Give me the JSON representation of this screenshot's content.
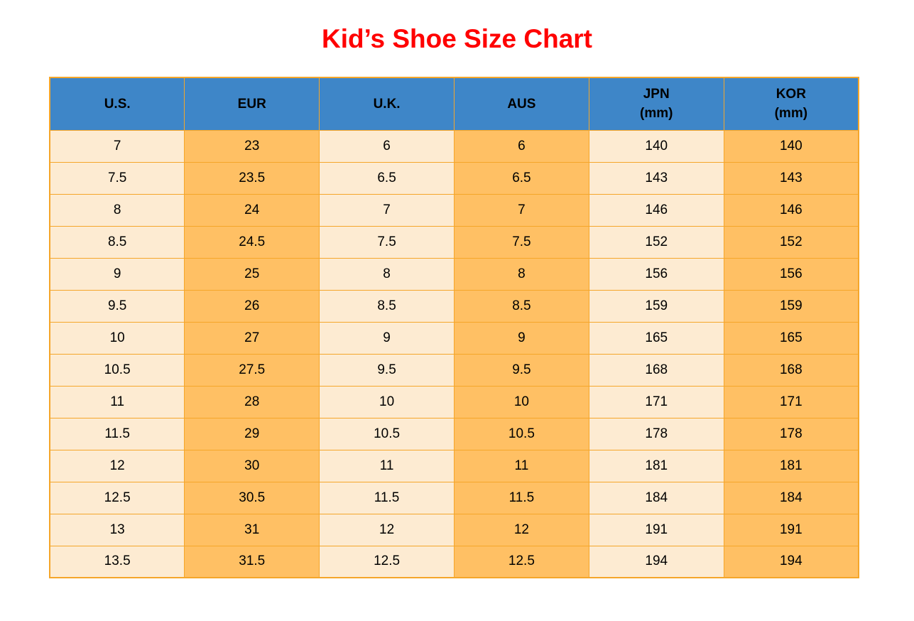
{
  "title": "Kid’s Shoe Size Chart",
  "colors": {
    "title": "#FF0000",
    "header_bg": "#3E86C8",
    "col_light": "#FDEBD2",
    "col_dark": "#FFC064",
    "border": "#F5A62A",
    "text": "#000000"
  },
  "table": {
    "headers": [
      [
        "U.S."
      ],
      [
        "EUR"
      ],
      [
        "U.K."
      ],
      [
        "AUS"
      ],
      [
        "JPN",
        "(mm)"
      ],
      [
        "KOR",
        "(mm)"
      ]
    ],
    "rows": [
      [
        "7",
        "23",
        "6",
        "6",
        "140",
        "140"
      ],
      [
        "7.5",
        "23.5",
        "6.5",
        "6.5",
        "143",
        "143"
      ],
      [
        "8",
        "24",
        "7",
        "7",
        "146",
        "146"
      ],
      [
        "8.5",
        "24.5",
        "7.5",
        "7.5",
        "152",
        "152"
      ],
      [
        "9",
        "25",
        "8",
        "8",
        "156",
        "156"
      ],
      [
        "9.5",
        "26",
        "8.5",
        "8.5",
        "159",
        "159"
      ],
      [
        "10",
        "27",
        "9",
        "9",
        "165",
        "165"
      ],
      [
        "10.5",
        "27.5",
        "9.5",
        "9.5",
        "168",
        "168"
      ],
      [
        "11",
        "28",
        "10",
        "10",
        "171",
        "171"
      ],
      [
        "11.5",
        "29",
        "10.5",
        "10.5",
        "178",
        "178"
      ],
      [
        "12",
        "30",
        "11",
        "11",
        "181",
        "181"
      ],
      [
        "12.5",
        "30.5",
        "11.5",
        "11.5",
        "184",
        "184"
      ],
      [
        "13",
        "31",
        "12",
        "12",
        "191",
        "191"
      ],
      [
        "13.5",
        "31.5",
        "12.5",
        "12.5",
        "194",
        "194"
      ]
    ]
  },
  "chart_data": {
    "type": "table",
    "title": "Kid’s Shoe Size Chart",
    "columns": [
      "U.S.",
      "EUR",
      "U.K.",
      "AUS",
      "JPN (mm)",
      "KOR (mm)"
    ],
    "rows": [
      [
        7,
        23,
        6,
        6,
        140,
        140
      ],
      [
        7.5,
        23.5,
        6.5,
        6.5,
        143,
        143
      ],
      [
        8,
        24,
        7,
        7,
        146,
        146
      ],
      [
        8.5,
        24.5,
        7.5,
        7.5,
        152,
        152
      ],
      [
        9,
        25,
        8,
        8,
        156,
        156
      ],
      [
        9.5,
        26,
        8.5,
        8.5,
        159,
        159
      ],
      [
        10,
        27,
        9,
        9,
        165,
        165
      ],
      [
        10.5,
        27.5,
        9.5,
        9.5,
        168,
        168
      ],
      [
        11,
        28,
        10,
        10,
        171,
        171
      ],
      [
        11.5,
        29,
        10.5,
        10.5,
        178,
        178
      ],
      [
        12,
        30,
        11,
        11,
        181,
        181
      ],
      [
        12.5,
        30.5,
        11.5,
        11.5,
        184,
        184
      ],
      [
        13,
        31,
        12,
        12,
        191,
        191
      ],
      [
        13.5,
        31.5,
        12.5,
        12.5,
        194,
        194
      ]
    ],
    "layout_hints": {
      "header_style": "blue background, bold black text",
      "column_fill_alternation": "odd columns cream, even columns orange",
      "grid": "on"
    }
  }
}
